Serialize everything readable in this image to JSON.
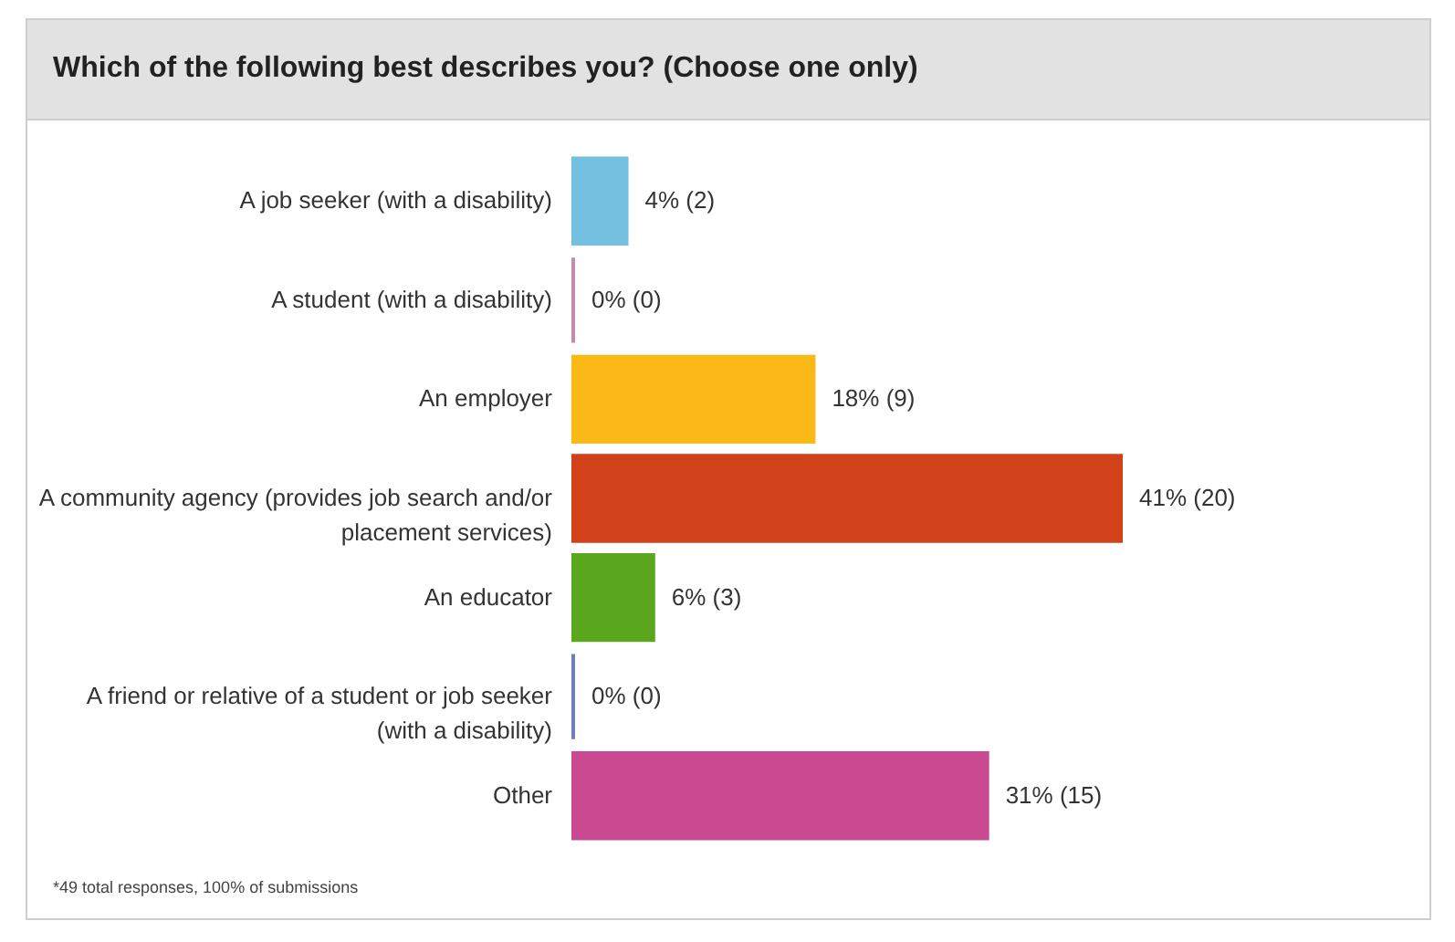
{
  "chart_data": {
    "type": "bar",
    "orientation": "horizontal",
    "title": "Which of the following best describes you? (Choose one only)",
    "categories": [
      "A job seeker (with a disability)",
      "A student (with a disability)",
      "An employer",
      "A community agency (provides job search and/or placement services)",
      "An educator",
      "A friend or relative of a student or job seeker (with a disability)",
      "Other"
    ],
    "values": [
      4,
      0,
      18,
      41,
      6,
      0,
      31
    ],
    "colors": [
      "#74c0e0",
      "#c48ab4",
      "#fbb917",
      "#d2421a",
      "#5aa61c",
      "#6f7fb8",
      "#c94a90"
    ],
    "value_labels": [
      "4% (2)",
      "0% (0)",
      "18% (9)",
      "41% (20)",
      "6% (3)",
      "0% (0)",
      "31% (15)"
    ],
    "annotations": [
      "*49 total responses, 100% of submissions"
    ]
  }
}
